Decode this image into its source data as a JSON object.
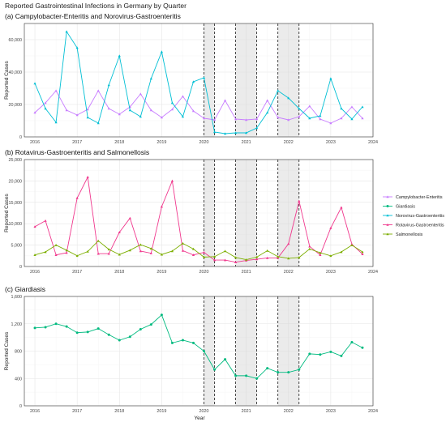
{
  "title": "Reported Gastrointestinal Infections in Germany by Quarter",
  "xlabel": "Year",
  "ylabel": "Reported Cases",
  "x_ticks": [
    "2016",
    "2017",
    "2018",
    "2019",
    "2020",
    "2021",
    "2022",
    "2023",
    "2024"
  ],
  "colors": {
    "Campylobacter-Enteritis": "#c77cff",
    "Giardiasis": "#00ba7f",
    "Norovirus-Gastroenteritis": "#00bfd4",
    "Rotavirus-Gastroenteritis": "#f0388d",
    "Salmonellosis": "#7cae00"
  },
  "legend": [
    "Campylobacter-Enteritis",
    "Giardiasis",
    "Norovirus-Gastroenteritis",
    "Rotavirus-Gastroenteritis",
    "Salmonellosis"
  ],
  "chart_data": {
    "type": "line",
    "x_quarters": [
      2016.0,
      2016.25,
      2016.5,
      2016.75,
      2017.0,
      2017.25,
      2017.5,
      2017.75,
      2018.0,
      2018.25,
      2018.5,
      2018.75,
      2019.0,
      2019.25,
      2019.5,
      2019.75,
      2020.0,
      2020.25,
      2020.5,
      2020.75,
      2021.0,
      2021.25,
      2021.5,
      2021.75,
      2022.0,
      2022.25,
      2022.5,
      2022.75,
      2023.0,
      2023.25,
      2023.5,
      2023.75
    ],
    "xlim": [
      2015.75,
      2024.0
    ],
    "shaded_periods": [
      [
        2020.0,
        2020.25
      ],
      [
        2020.75,
        2021.25
      ],
      [
        2021.75,
        2022.25
      ]
    ],
    "panels": [
      {
        "title": "(a) Campylobacter-Enteritis and Norovirus-Gastroenteritis",
        "ylim": [
          0,
          70000
        ],
        "yticks": [
          0,
          20000,
          40000,
          60000
        ],
        "ytick_labels": [
          "0",
          "20,000",
          "40,000",
          "60,000"
        ],
        "series": [
          {
            "name": "Campylobacter-Enteritis",
            "values": [
              15000,
              21000,
              28500,
              16500,
              13500,
              17000,
              28500,
              17500,
              14000,
              18500,
              26500,
              16500,
              12000,
              17000,
              25000,
              16000,
              11500,
              10500,
              22500,
              11000,
              10500,
              11000,
              22500,
              12000,
              10500,
              12500,
              19000,
              11000,
              8500,
              11500,
              18500,
              11500
            ]
          },
          {
            "name": "Norovirus-Gastroenteritis",
            "values": [
              33000,
              17500,
              9000,
              65000,
              55000,
              12000,
              8500,
              32000,
              50000,
              16500,
              12500,
              36000,
              52500,
              21000,
              12500,
              34000,
              36500,
              3000,
              2000,
              2500,
              2500,
              5500,
              15000,
              28500,
              24000,
              17500,
              11500,
              13000,
              36000,
              17500,
              11000,
              18500
            ]
          }
        ]
      },
      {
        "title": "(b) Rotavirus-Gastroenteritis and Salmonellosis",
        "ylim": [
          0,
          25000
        ],
        "yticks": [
          0,
          5000,
          10000,
          15000,
          20000,
          25000
        ],
        "ytick_labels": [
          "0",
          "5,000",
          "10,000",
          "15,000",
          "20,000",
          "25,000"
        ],
        "series": [
          {
            "name": "Rotavirus-Gastroenteritis",
            "values": [
              9300,
              10700,
              2700,
              3200,
              16000,
              20900,
              3000,
              3000,
              8000,
              11300,
              3600,
              3100,
              14000,
              20000,
              3700,
              2700,
              3300,
              1500,
              1500,
              1000,
              1400,
              1700,
              2000,
              2000,
              5300,
              15300,
              4700,
              2700,
              9000,
              13800,
              5200,
              2900
            ]
          },
          {
            "name": "Salmonellosis",
            "values": [
              2700,
              3400,
              5000,
              3800,
              2500,
              3500,
              6000,
              4000,
              2800,
              3800,
              5100,
              4200,
              2800,
              3600,
              5400,
              4100,
              2200,
              2300,
              3600,
              2100,
              1600,
              2200,
              3700,
              2300,
              1900,
              2100,
              4100,
              3200,
              2500,
              3400,
              5000,
              3400
            ]
          }
        ]
      },
      {
        "title": "(c) Giardiasis",
        "ylim": [
          0,
          1600
        ],
        "yticks": [
          0,
          400,
          800,
          1200,
          1600
        ],
        "ytick_labels": [
          "0",
          "400",
          "800",
          "1,200",
          "1,600"
        ],
        "series": [
          {
            "name": "Giardiasis",
            "values": [
              1140,
              1150,
              1200,
              1160,
              1070,
              1080,
              1130,
              1040,
              960,
              1010,
              1120,
              1190,
              1330,
              920,
              960,
              920,
              800,
              530,
              680,
              440,
              440,
              400,
              550,
              490,
              490,
              530,
              760,
              750,
              790,
              730,
              930,
              850
            ]
          }
        ]
      }
    ]
  }
}
